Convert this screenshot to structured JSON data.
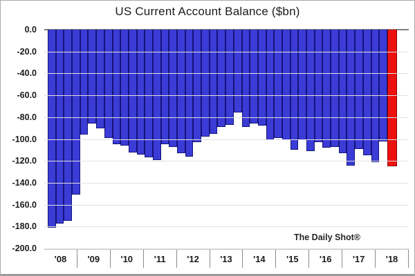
{
  "title": "US Current Account Balance ($bn)",
  "watermark": "The Daily Shot®",
  "y_axis": {
    "labels": [
      "0.0",
      "-20.0",
      "-40.0",
      "-60.0",
      "-80.0",
      "-100.0",
      "-120.0",
      "-140.0",
      "-160.0",
      "-180.0",
      "-200.0"
    ],
    "min": -200,
    "max": 0
  },
  "x_axis": {
    "year_labels": [
      "'08",
      "'09",
      "'10",
      "'11",
      "'12",
      "'13",
      "'14",
      "'15",
      "'16",
      "'17",
      "'18"
    ]
  },
  "colors": {
    "bar_fill": "#3B3BD6",
    "bar_border": "#14147A",
    "highlight_fill": "#EE1111",
    "highlight_border": "#8B0000",
    "gridline": "#e0e0e0",
    "zero_line": "#808080"
  },
  "chart_data": {
    "type": "bar",
    "title": "US Current Account Balance ($bn)",
    "ylabel": "",
    "xlabel": "",
    "ylim": [
      -200,
      0
    ],
    "grid": true,
    "legend": "none",
    "highlight_last": true,
    "highlight_note": "most recent quarter shown in red",
    "x": [
      "2008 Q1",
      "2008 Q2",
      "2008 Q3",
      "2008 Q4",
      "2009 Q1",
      "2009 Q2",
      "2009 Q3",
      "2009 Q4",
      "2010 Q1",
      "2010 Q2",
      "2010 Q3",
      "2010 Q4",
      "2011 Q1",
      "2011 Q2",
      "2011 Q3",
      "2011 Q4",
      "2012 Q1",
      "2012 Q2",
      "2012 Q3",
      "2012 Q4",
      "2013 Q1",
      "2013 Q2",
      "2013 Q3",
      "2013 Q4",
      "2014 Q1",
      "2014 Q2",
      "2014 Q3",
      "2014 Q4",
      "2015 Q1",
      "2015 Q2",
      "2015 Q3",
      "2015 Q4",
      "2016 Q1",
      "2016 Q2",
      "2016 Q3",
      "2016 Q4",
      "2017 Q1",
      "2017 Q2",
      "2017 Q3",
      "2017 Q4",
      "2018 Q1",
      "2018 Q2",
      "2018 Q3"
    ],
    "values": [
      -181,
      -177,
      -175,
      -151,
      -96,
      -86,
      -90,
      -99,
      -105,
      -106,
      -112,
      -114,
      -117,
      -119,
      -105,
      -107,
      -113,
      -116,
      -103,
      -98,
      -95,
      -89,
      -87,
      -76,
      -89,
      -86,
      -88,
      -101,
      -99,
      -101,
      -110,
      -101,
      -111,
      -103,
      -108,
      -107,
      -113,
      -124,
      -109,
      -115,
      -121,
      -102,
      -125
    ]
  }
}
